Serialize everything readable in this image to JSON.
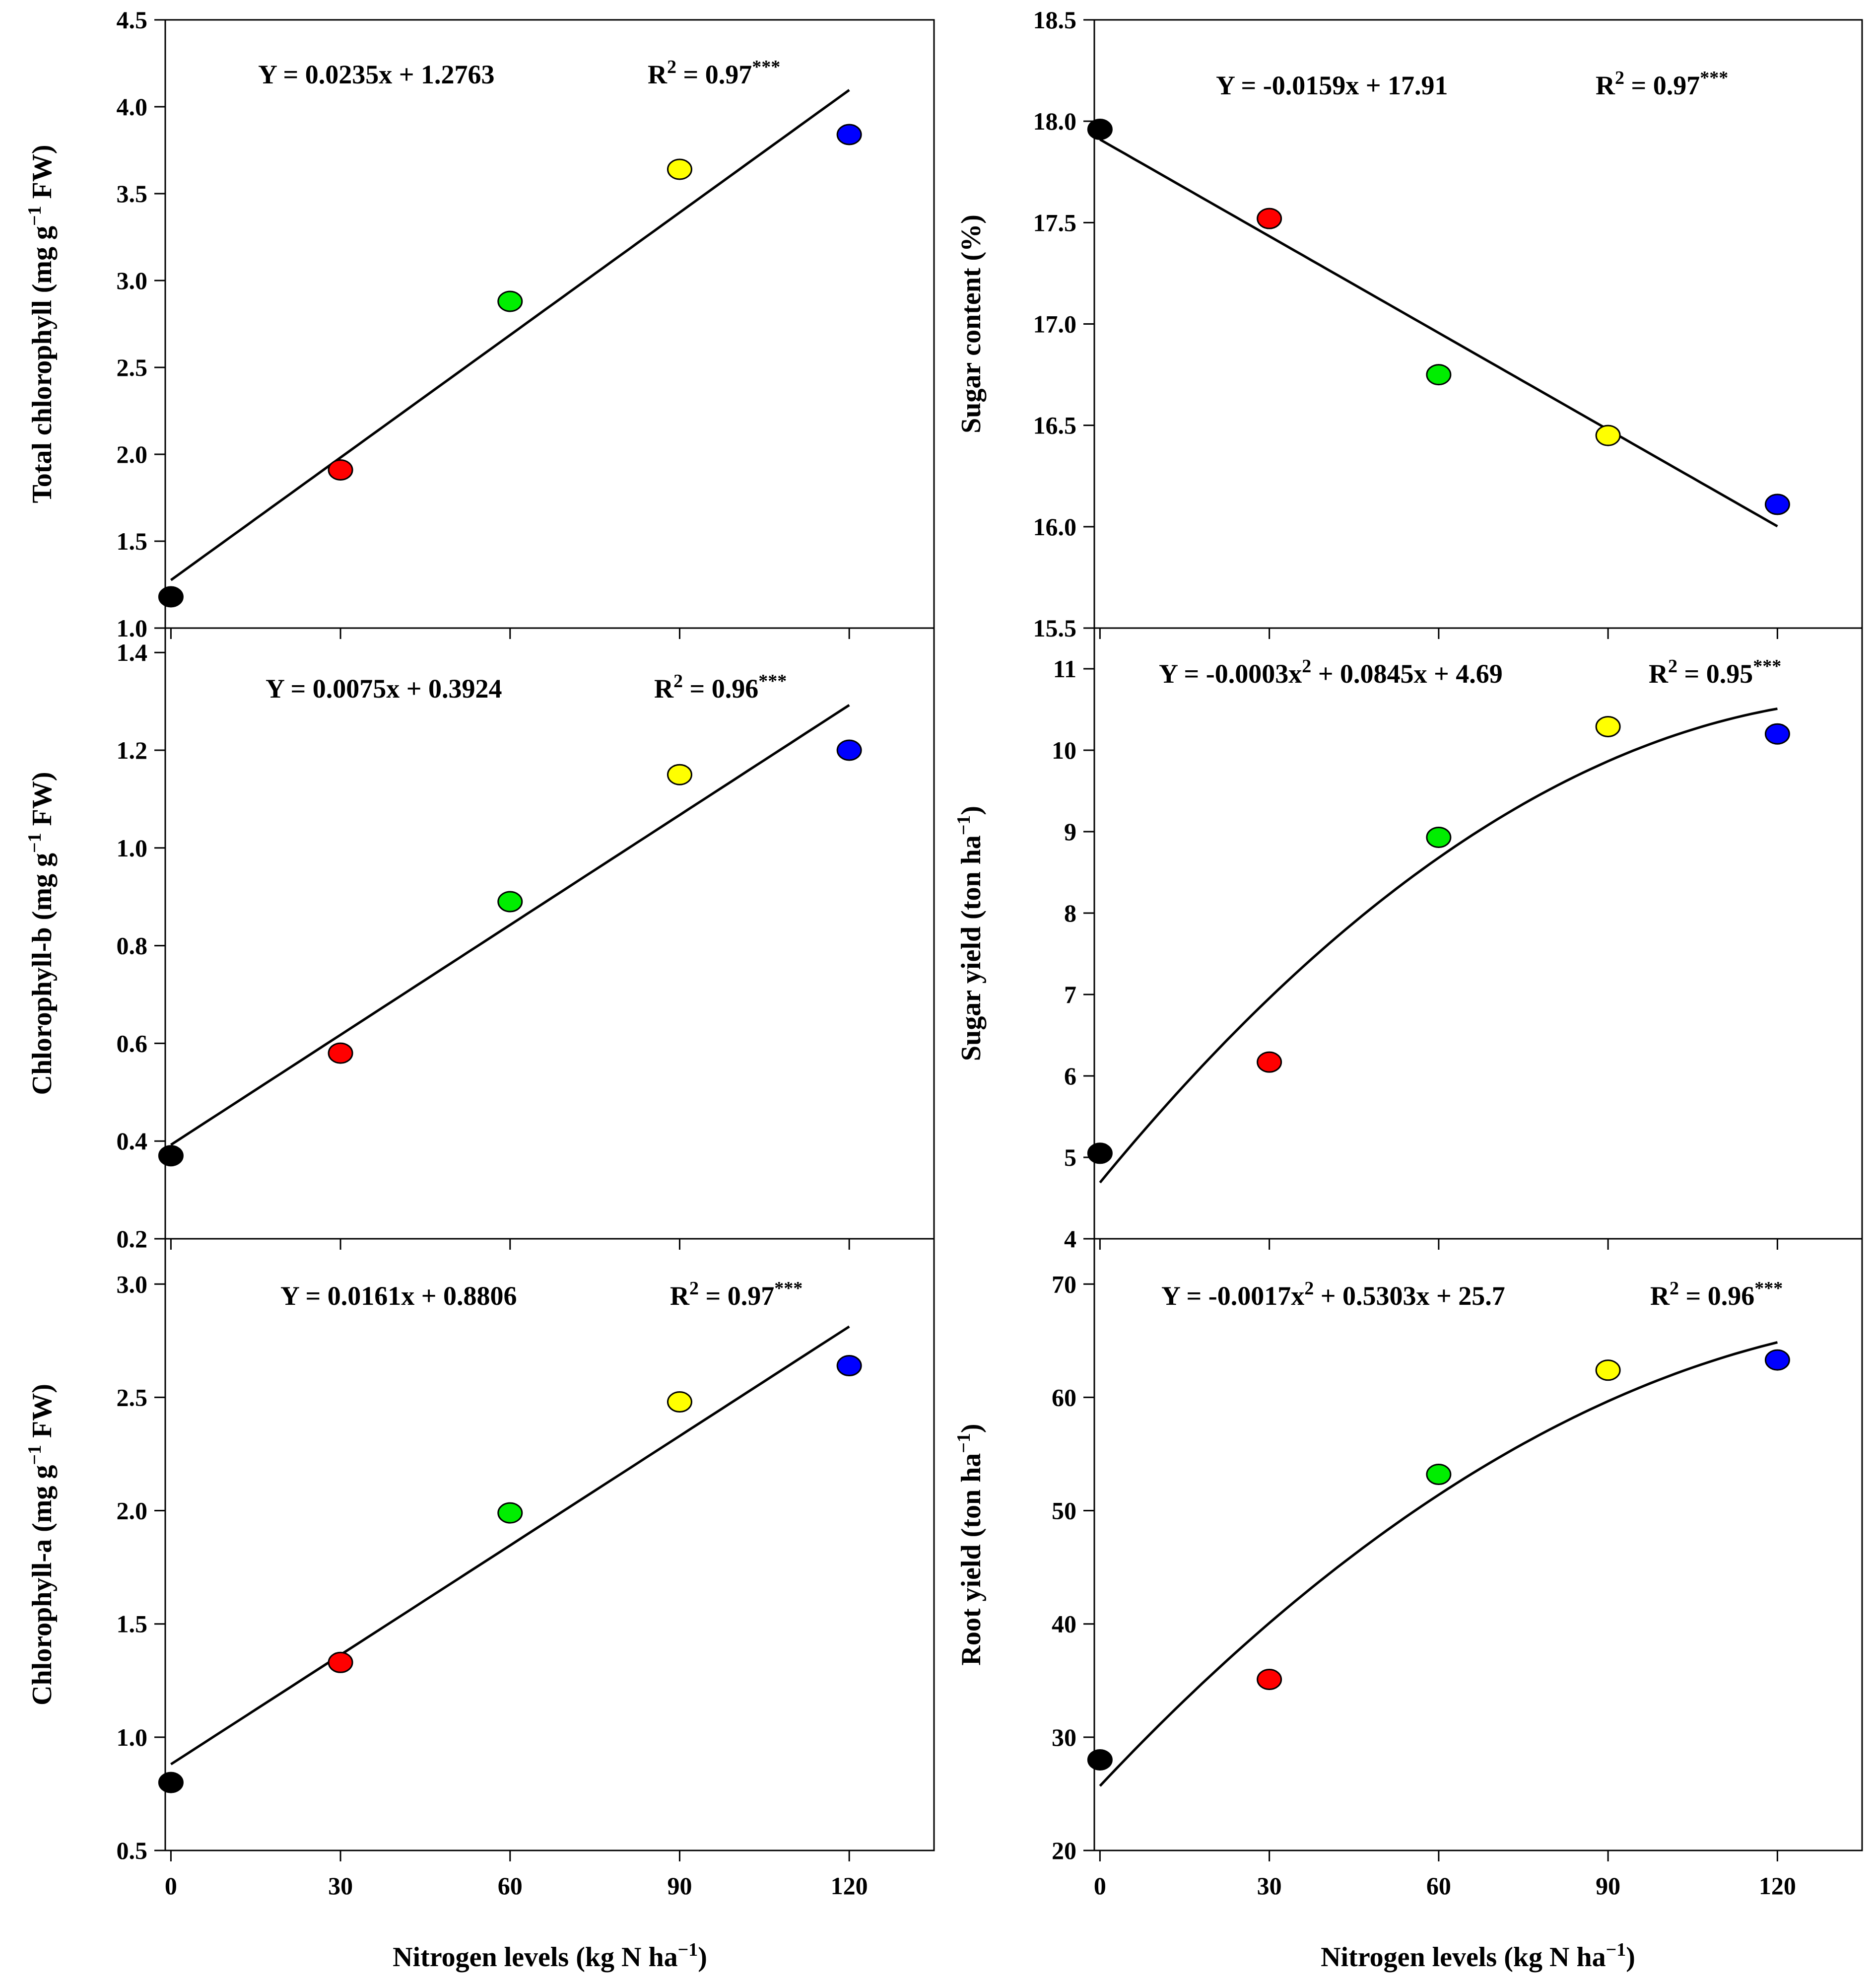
{
  "chart_data": [
    {
      "id": "total-chlorophyll",
      "type": "scatter",
      "x": [
        0,
        30,
        60,
        90,
        120
      ],
      "values": [
        1.18,
        1.91,
        2.88,
        3.64,
        3.84
      ],
      "colors": [
        "#000000",
        "#ff0000",
        "#00ee00",
        "#ffff00",
        "#0000ff"
      ],
      "fit": {
        "type": "linear",
        "a": 0,
        "b": 0.0235,
        "c": 1.2763,
        "x_range": [
          0,
          120
        ]
      },
      "equation": "Y = 0.0235x + 1.2763",
      "r2_text": "R",
      "r2_power": "2",
      "r2_value": " = 0.97",
      "significance": "***",
      "ylabel": "Total chlorophyll (mg g",
      "ylabel_power": "−1",
      "ylabel_tail": " FW)",
      "ylim": [
        1.0,
        4.5
      ],
      "yticks": [
        "1.0",
        "1.5",
        "2.0",
        "2.5",
        "3.0",
        "3.5",
        "4.0",
        "4.5"
      ],
      "xlim": [
        -1,
        135
      ],
      "xticks": [
        "0",
        "30",
        "60",
        "90",
        "120"
      ],
      "show_xticks": false
    },
    {
      "id": "sugar-content",
      "type": "scatter",
      "x": [
        0,
        30,
        60,
        90,
        120
      ],
      "values": [
        17.96,
        17.52,
        16.75,
        16.45,
        16.11
      ],
      "colors": [
        "#000000",
        "#ff0000",
        "#00ee00",
        "#ffff00",
        "#0000ff"
      ],
      "fit": {
        "type": "linear",
        "a": 0,
        "b": -0.0159,
        "c": 17.91,
        "x_range": [
          0,
          120
        ]
      },
      "equation": "Y = -0.0159x + 17.91",
      "r2_text": "R",
      "r2_power": "2",
      "r2_value": " = 0.97",
      "significance": "***",
      "ylabel": "Sugar content (%)",
      "ylabel_power": "",
      "ylabel_tail": "",
      "ylim": [
        15.5,
        18.5
      ],
      "yticks": [
        "15.5",
        "16.0",
        "16.5",
        "17.0",
        "17.5",
        "18.0",
        "18.5"
      ],
      "xlim": [
        -1,
        135
      ],
      "xticks": [
        "0",
        "30",
        "60",
        "90",
        "120"
      ],
      "show_xticks": false
    },
    {
      "id": "chlorophyll-b",
      "type": "scatter",
      "x": [
        0,
        30,
        60,
        90,
        120
      ],
      "values": [
        0.37,
        0.58,
        0.89,
        1.15,
        1.2
      ],
      "colors": [
        "#000000",
        "#ff0000",
        "#00ee00",
        "#ffff00",
        "#0000ff"
      ],
      "fit": {
        "type": "linear",
        "a": 0,
        "b": 0.0075,
        "c": 0.3924,
        "x_range": [
          0,
          120
        ]
      },
      "equation": "Y = 0.0075x + 0.3924",
      "r2_text": "R",
      "r2_power": "2",
      "r2_value": " = 0.96",
      "significance": "***",
      "ylabel": "Chlorophyll-b (mg g",
      "ylabel_power": "−1",
      "ylabel_tail": " FW)",
      "ylim": [
        0.2,
        1.45
      ],
      "yticks": [
        "0.2",
        "0.4",
        "0.6",
        "0.8",
        "1.0",
        "1.2",
        "1.4"
      ],
      "xlim": [
        -1,
        135
      ],
      "xticks": [
        "0",
        "30",
        "60",
        "90",
        "120"
      ],
      "show_xticks": false
    },
    {
      "id": "sugar-yield",
      "type": "scatter",
      "x": [
        0,
        30,
        60,
        90,
        120
      ],
      "values": [
        5.05,
        6.17,
        8.93,
        10.29,
        10.2
      ],
      "colors": [
        "#000000",
        "#ff0000",
        "#00ee00",
        "#ffff00",
        "#0000ff"
      ],
      "fit": {
        "type": "quadratic",
        "a": -0.0003,
        "b": 0.0845,
        "c": 4.69,
        "x_range": [
          0,
          120
        ]
      },
      "equation": "Y = -0.0003x",
      "equation_power": "2",
      "equation_tail": " + 0.0845x + 4.69",
      "r2_text": "R",
      "r2_power": "2",
      "r2_value": " = 0.95",
      "significance": "***",
      "ylabel": "Sugar yield (ton ha",
      "ylabel_power": "−1",
      "ylabel_tail": ")",
      "ylim": [
        4,
        11.5
      ],
      "yticks": [
        "4",
        "5",
        "6",
        "7",
        "8",
        "9",
        "10",
        "11"
      ],
      "xlim": [
        -1,
        135
      ],
      "xticks": [
        "0",
        "30",
        "60",
        "90",
        "120"
      ],
      "show_xticks": false
    },
    {
      "id": "chlorophyll-a",
      "type": "scatter",
      "x": [
        0,
        30,
        60,
        90,
        120
      ],
      "values": [
        0.8,
        1.33,
        1.99,
        2.48,
        2.64
      ],
      "colors": [
        "#000000",
        "#ff0000",
        "#00ee00",
        "#ffff00",
        "#0000ff"
      ],
      "fit": {
        "type": "linear",
        "a": 0,
        "b": 0.0161,
        "c": 0.8806,
        "x_range": [
          0,
          120
        ]
      },
      "equation": "Y = 0.0161x + 0.8806",
      "r2_text": "R",
      "r2_power": "2",
      "r2_value": " = 0.97",
      "significance": "***",
      "ylabel": "Chlorophyll-a (mg g",
      "ylabel_power": "−1",
      "ylabel_tail": " FW)",
      "ylim": [
        0.5,
        3.2
      ],
      "yticks": [
        "0.5",
        "1.0",
        "1.5",
        "2.0",
        "2.5",
        "3.0"
      ],
      "xlim": [
        -1,
        135
      ],
      "xticks": [
        "0",
        "30",
        "60",
        "90",
        "120"
      ],
      "show_xticks": true
    },
    {
      "id": "root-yield",
      "type": "scatter",
      "x": [
        0,
        30,
        60,
        90,
        120
      ],
      "values": [
        28.0,
        35.1,
        53.2,
        62.4,
        63.3
      ],
      "colors": [
        "#000000",
        "#ff0000",
        "#00ee00",
        "#ffff00",
        "#0000ff"
      ],
      "fit": {
        "type": "quadratic",
        "a": -0.0017,
        "b": 0.5303,
        "c": 25.7,
        "x_range": [
          0,
          120
        ]
      },
      "equation": "Y = -0.0017x",
      "equation_power": "2",
      "equation_tail": " + 0.5303x + 25.7",
      "r2_text": "R",
      "r2_power": "2",
      "r2_value": " = 0.96",
      "significance": "***",
      "ylabel": "Root yield (ton ha",
      "ylabel_power": "−1",
      "ylabel_tail": ")",
      "ylim": [
        20,
        74
      ],
      "yticks": [
        "20",
        "30",
        "40",
        "50",
        "60",
        "70"
      ],
      "xlim": [
        -1,
        135
      ],
      "xticks": [
        "0",
        "30",
        "60",
        "90",
        "120"
      ],
      "show_xticks": true
    }
  ],
  "xlabel": {
    "text": "Nitrogen levels (kg N ha",
    "power": "−1",
    "tail": ")"
  }
}
